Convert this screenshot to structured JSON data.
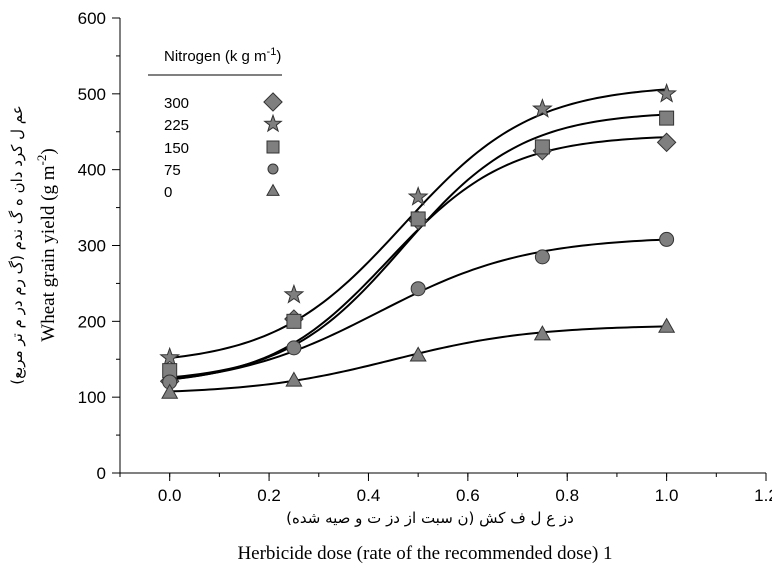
{
  "chart_data": {
    "type": "scatter",
    "title": "",
    "xlabel": "Herbicide dose (rate of the recommended dose)",
    "xlabel_secondary": "دز ع ل ف کش (ن سبت از دز ت و صیه شده)",
    "xlabel_suffix": "1",
    "ylabel": "Wheat grain yield (g m",
    "ylabel_unit_sup": "-2",
    "ylabel_close": ")",
    "ylabel_secondary": "عم ل کرد دان ه گ ندم (گ رم در م تر مربع)",
    "xlim": [
      -0.1,
      1.2
    ],
    "ylim": [
      0,
      600
    ],
    "x_ticks": [
      "0.0",
      "0.2",
      "0.4",
      "0.6",
      "0.8",
      "1.0",
      "1.2"
    ],
    "y_ticks": [
      "0",
      "100",
      "200",
      "300",
      "400",
      "500",
      "600"
    ],
    "grid": false,
    "legend_title": "Nitrogen (k g m",
    "legend_title_sup": "-1",
    "legend_title_close": ")",
    "legend_position": "top-left",
    "fit": "sigmoidal curve per series",
    "x": [
      0.0,
      0.25,
      0.5,
      0.75,
      1.0
    ],
    "series": [
      {
        "name": "300",
        "marker": "diamond",
        "values": [
          121,
          203,
          333,
          425,
          436
        ],
        "fit": [
          115,
          446,
          0.44,
          0.12
        ]
      },
      {
        "name": "225",
        "marker": "star",
        "values": [
          152,
          235,
          364,
          480,
          500
        ],
        "fit": [
          142,
          512,
          0.47,
          0.13
        ]
      },
      {
        "name": "150",
        "marker": "square",
        "values": [
          135,
          200,
          335,
          430,
          468
        ],
        "fit": [
          119,
          477,
          0.47,
          0.12
        ]
      },
      {
        "name": "75",
        "marker": "circle",
        "values": [
          120,
          165,
          243,
          285,
          308
        ],
        "fit": [
          112,
          312,
          0.42,
          0.15
        ]
      },
      {
        "name": "0",
        "marker": "triangle",
        "values": [
          106,
          122,
          155,
          183,
          193
        ],
        "fit": [
          104,
          195,
          0.45,
          0.14
        ]
      }
    ],
    "colors": {
      "marker_fill": "#7f7f7f",
      "marker_stroke": "#333333",
      "line": "#000000"
    }
  }
}
